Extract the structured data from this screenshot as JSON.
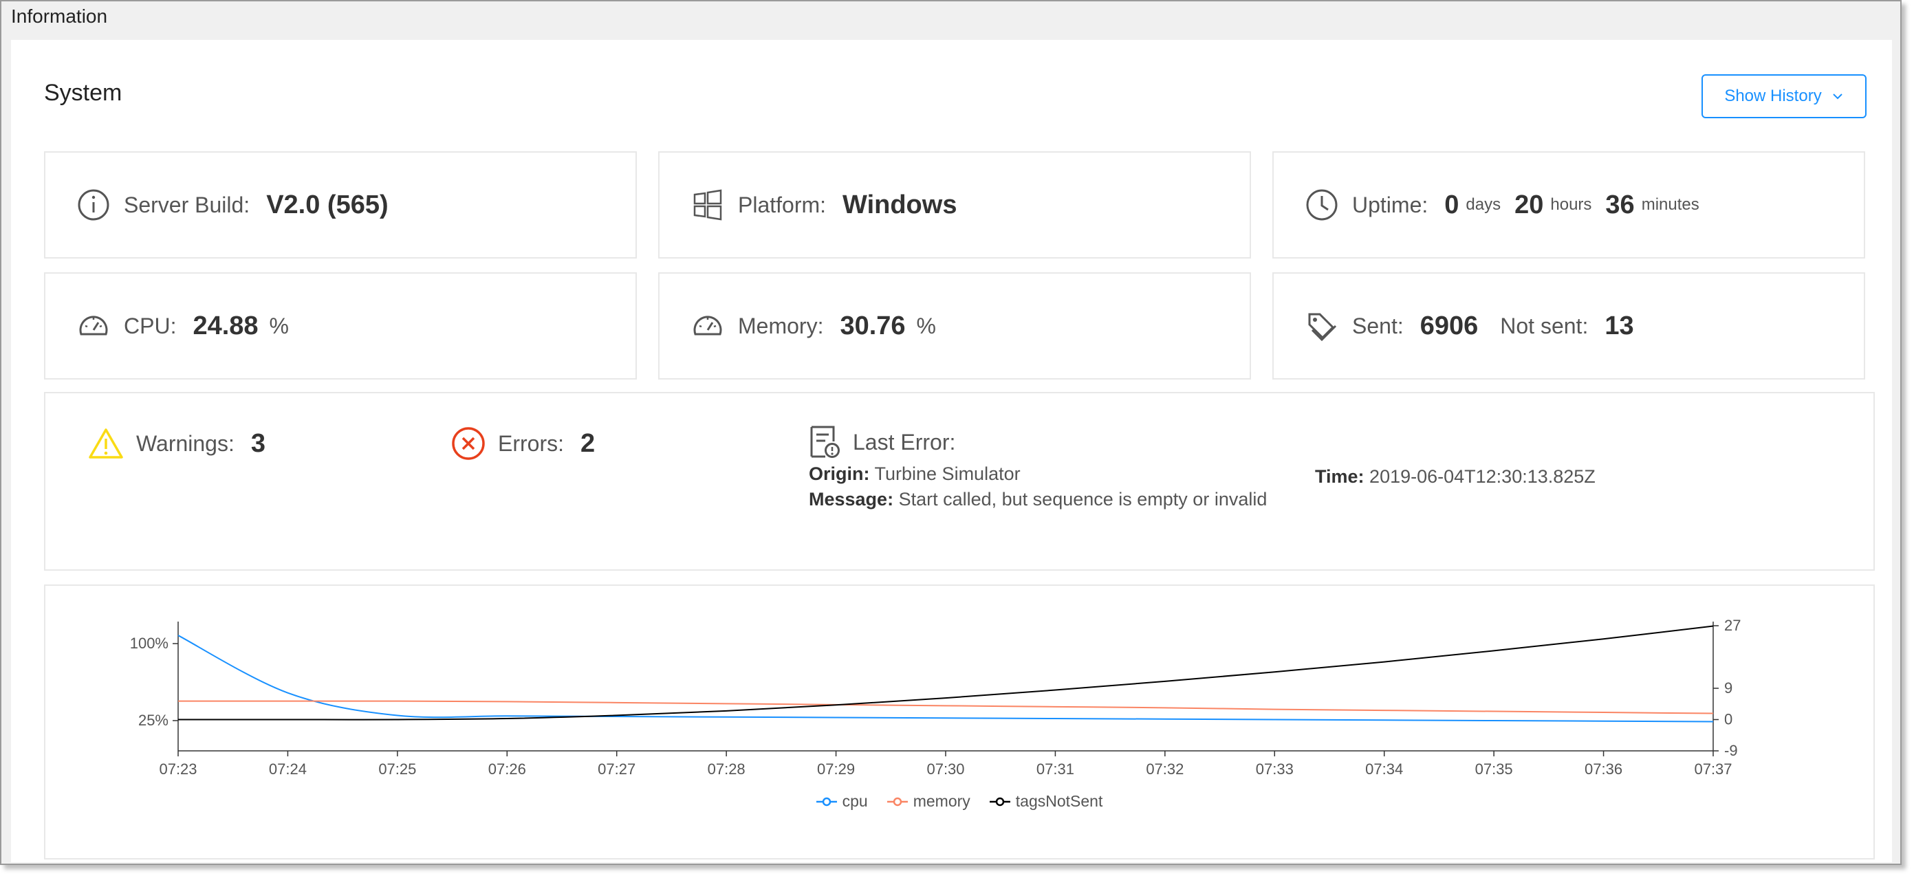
{
  "window": {
    "title": "Information"
  },
  "section": {
    "title": "System"
  },
  "history_button": {
    "label": "Show History"
  },
  "build": {
    "label": "Server Build:",
    "value": "V2.0 (565)"
  },
  "platform": {
    "label": "Platform:",
    "value": "Windows"
  },
  "uptime": {
    "label": "Uptime:",
    "days": "0",
    "days_unit": "days",
    "hours": "20",
    "hours_unit": "hours",
    "minutes": "36",
    "minutes_unit": "minutes"
  },
  "cpu": {
    "label": "CPU:",
    "value": "24.88",
    "unit": "%"
  },
  "memory": {
    "label": "Memory:",
    "value": "30.76",
    "unit": "%"
  },
  "tags": {
    "sent_label": "Sent:",
    "sent_value": "6906",
    "not_sent_label": "Not sent:",
    "not_sent_value": "13"
  },
  "warnings": {
    "label": "Warnings:",
    "value": "3"
  },
  "errors": {
    "label": "Errors:",
    "value": "2"
  },
  "last_error": {
    "title": "Last Error:",
    "origin_label": "Origin:",
    "origin": "Turbine Simulator",
    "message_label": "Message:",
    "message": "Start called, but sequence is empty or invalid",
    "time_label": "Time:",
    "time": "2019-06-04T12:30:13.825Z"
  },
  "colors": {
    "accent": "#1890ff",
    "cpu": "#1890ff",
    "memory": "#fa8564",
    "tags": "#000000",
    "warning": "#fadb14",
    "error": "#e8401c"
  },
  "icons": [
    "info-icon",
    "windows-icon",
    "clock-icon",
    "dashboard-icon",
    "tag-icon",
    "warning-icon",
    "error-icon",
    "error-report-icon",
    "chevron-down-icon"
  ],
  "chart_data": {
    "type": "line",
    "x": [
      "07:23",
      "07:24",
      "07:25",
      "07:26",
      "07:27",
      "07:28",
      "07:29",
      "07:30",
      "07:31",
      "07:32",
      "07:33",
      "07:34",
      "07:35",
      "07:36",
      "07:37"
    ],
    "y_left_ticks": [
      "100%",
      "25%"
    ],
    "y_right_ticks": [
      "27",
      "9",
      "0",
      "-9"
    ],
    "y_right_range": [
      -9,
      27
    ],
    "series": [
      {
        "name": "cpu",
        "axis": "left",
        "values": [
          108,
          52,
          30,
          29.5,
          29,
          28.5,
          28,
          27.5,
          27,
          26.5,
          26,
          25.5,
          25,
          24.5,
          24
        ]
      },
      {
        "name": "memory",
        "axis": "left",
        "values": [
          44,
          44,
          44,
          43.5,
          42.5,
          41.5,
          40.5,
          39.5,
          38.5,
          37.5,
          36,
          35,
          34,
          33,
          32
        ]
      },
      {
        "name": "tagsNotSent",
        "axis": "right",
        "values": [
          0,
          0,
          0,
          0.3,
          1.2,
          2.5,
          4.2,
          6.2,
          8.5,
          11,
          13.7,
          16.6,
          19.8,
          23.2,
          26.9
        ]
      }
    ]
  }
}
